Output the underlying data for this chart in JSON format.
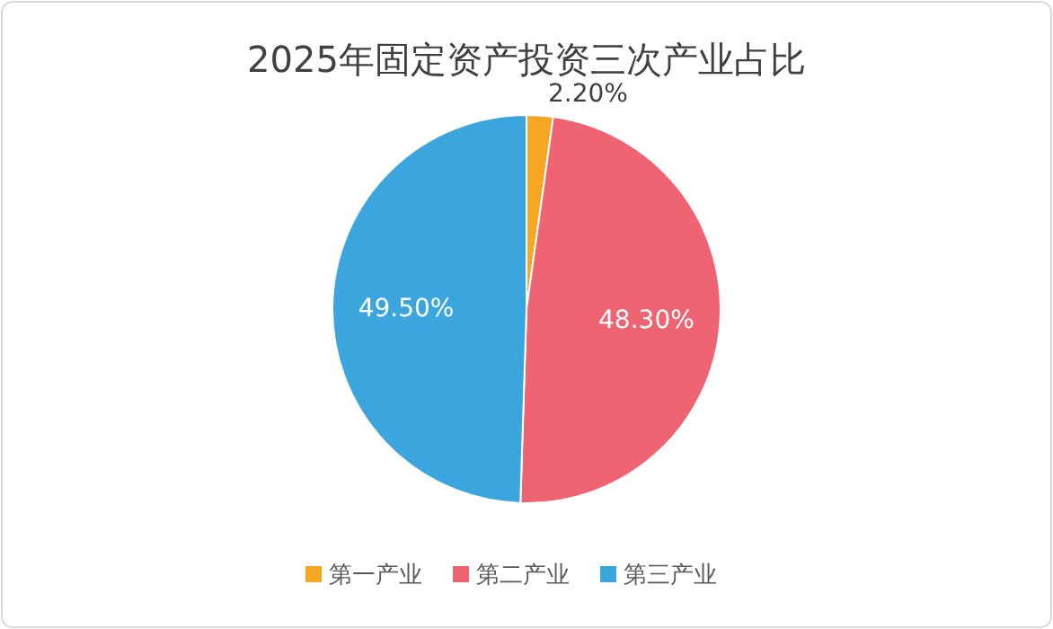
{
  "chart_data": {
    "type": "pie",
    "title": "2025年固定资产投资三次产业占比",
    "categories": [
      "第一产业",
      "第二产业",
      "第三产业"
    ],
    "values": [
      2.2,
      48.3,
      49.5
    ],
    "colors": [
      "#f5a623",
      "#ee6472",
      "#3ba6dd"
    ],
    "value_labels": [
      "2.20%",
      "48.30%",
      "49.50%"
    ],
    "legend": "bottom"
  }
}
